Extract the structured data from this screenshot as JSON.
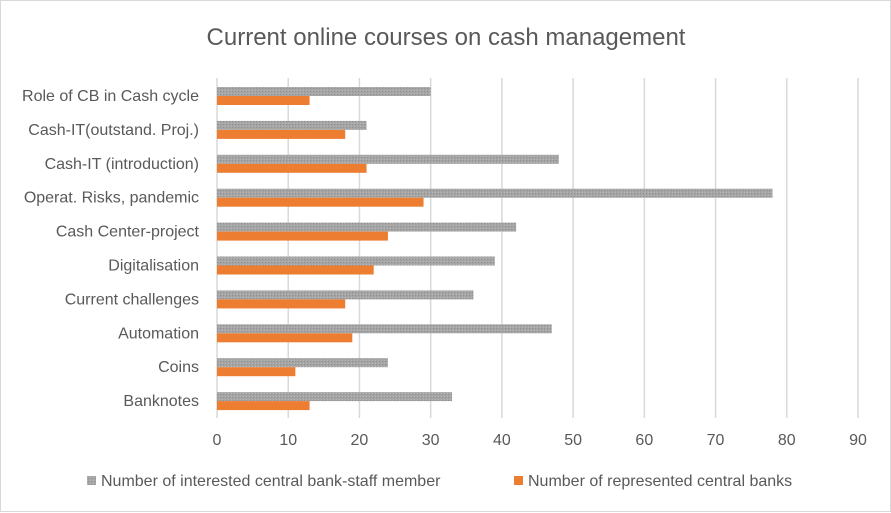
{
  "chart_data": {
    "type": "bar",
    "orientation": "horizontal",
    "title": "Current online courses on cash management",
    "categories": [
      "Role of CB in Cash cycle",
      "Cash-IT(outstand. Proj.)",
      "Cash-IT (introduction)",
      "Operat. Risks, pandemic",
      "Cash Center-project",
      "Digitalisation",
      "Current challenges",
      "Automation",
      "Coins",
      "Banknotes"
    ],
    "series": [
      {
        "name": "Number of interested central bank-staff member",
        "color": "#a5a5a5",
        "values": [
          30,
          21,
          48,
          78,
          42,
          39,
          36,
          47,
          24,
          33
        ]
      },
      {
        "name": "Number of represented central banks",
        "color": "#ed7d31",
        "values": [
          13,
          18,
          21,
          29,
          24,
          22,
          18,
          19,
          11,
          13
        ]
      }
    ],
    "xlim": [
      0,
      90
    ],
    "xticks": [
      "0",
      "10",
      "20",
      "30",
      "40",
      "50",
      "60",
      "70",
      "80",
      "90"
    ],
    "grid": true,
    "legend_position": "bottom",
    "xlabel": "",
    "ylabel": ""
  }
}
